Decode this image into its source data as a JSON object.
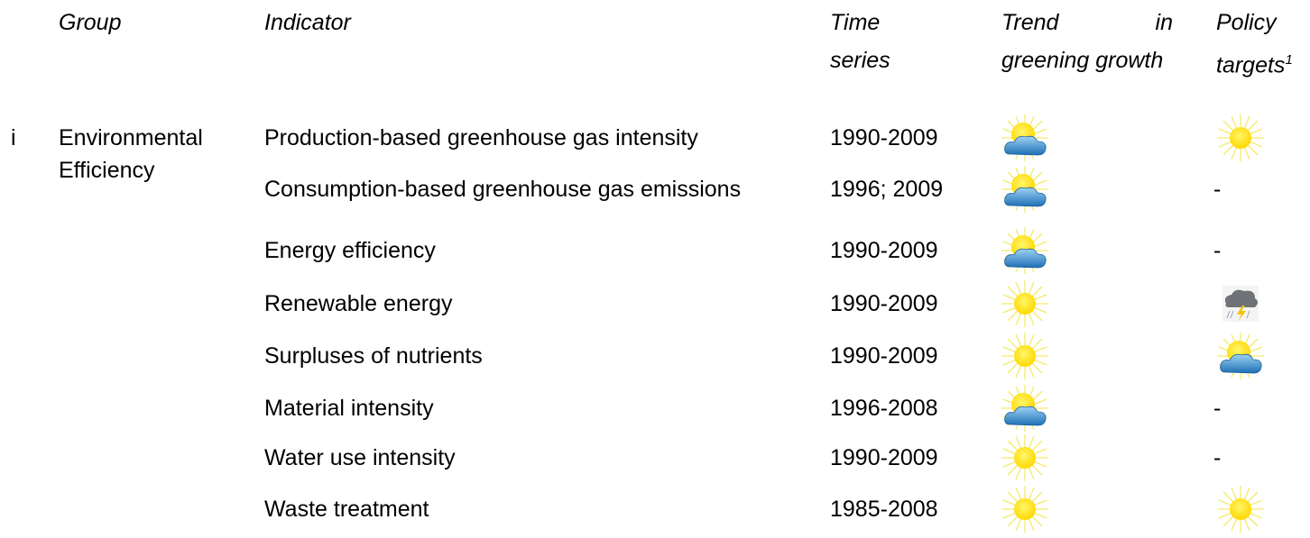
{
  "header": {
    "group": "Group",
    "indicator": "Indicator",
    "time_series": "Time series",
    "trend": "Trend in greening growth",
    "policy": "Policy targets",
    "policy_note": "1"
  },
  "rows": [
    {
      "number": "i",
      "group": "Environmental Efficiency",
      "indicator": "Production-based greenhouse gas intensity",
      "time": "1990-2009"
    },
    {
      "indicator": "Consumption-based greenhouse gas emissions",
      "time": "1996; 2009",
      "policy": "-"
    },
    {
      "indicator": "Energy efficiency",
      "time": "1990-2009",
      "policy": "-"
    },
    {
      "indicator": "Renewable energy",
      "time": "1990-2009"
    },
    {
      "indicator": "Surpluses of nutrients",
      "time": "1990-2009"
    },
    {
      "indicator": "Material intensity",
      "time": "1996-2008",
      "policy": "-"
    },
    {
      "indicator": "Water use intensity",
      "time": "1990-2009",
      "policy": "-"
    },
    {
      "indicator": "Waste treatment",
      "time": "1985-2008"
    }
  ]
}
